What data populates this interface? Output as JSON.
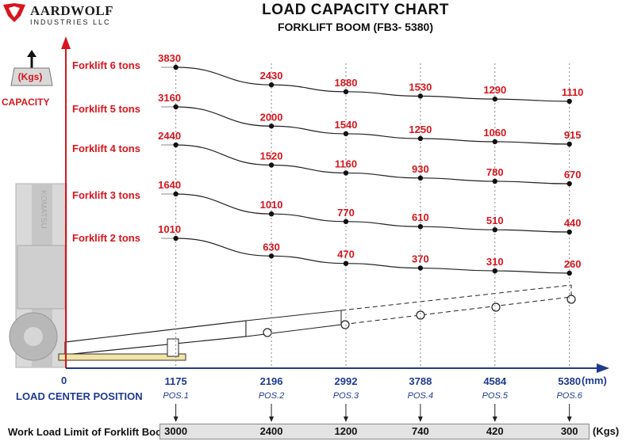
{
  "brand": {
    "name": "AARDWOLF",
    "subtitle": "INDUSTRIES LLC",
    "accent_color": "#d8151c",
    "axis_color": "#1f3a8f"
  },
  "header": {
    "title": "LOAD CAPACITY CHART",
    "subtitle": "FORKLIFT BOOM (FB3- 5380)"
  },
  "y_axis": {
    "unit": "(Kgs)",
    "label": "CAPACITY"
  },
  "x_axis": {
    "origin": "0",
    "label": "LOAD CENTER POSITION",
    "unit": "(mm)"
  },
  "work_load": {
    "label": "Work Load Limit of Forklift Boom",
    "unit": "(Kgs)",
    "values": [
      "3000",
      "2400",
      "1200",
      "740",
      "420",
      "300"
    ]
  },
  "chart_data": {
    "type": "line",
    "title": "LOAD CAPACITY CHART",
    "subtitle": "FORKLIFT BOOM (FB3- 5380)",
    "xlabel": "LOAD CENTER POSITION (mm)",
    "ylabel": "CAPACITY (Kgs)",
    "x": [
      1175,
      2196,
      2992,
      3788,
      4584,
      5380
    ],
    "x_tick_labels": [
      "1175",
      "2196",
      "2992",
      "3788",
      "4584",
      "5380"
    ],
    "position_labels": [
      "POS.1",
      "POS.2",
      "POS.3",
      "POS.4",
      "POS.5",
      "POS.6"
    ],
    "series": [
      {
        "name": "Forklift 6 tons",
        "values": [
          3830,
          2430,
          1880,
          1530,
          1290,
          1110
        ]
      },
      {
        "name": "Forklift 5 tons",
        "values": [
          3160,
          2000,
          1540,
          1250,
          1060,
          915
        ]
      },
      {
        "name": "Forklift 4 tons",
        "values": [
          2440,
          1520,
          1160,
          930,
          780,
          670
        ]
      },
      {
        "name": "Forklift 3 tons",
        "values": [
          1640,
          1010,
          770,
          610,
          510,
          440
        ]
      },
      {
        "name": "Forklift 2 tons",
        "values": [
          1010,
          630,
          470,
          370,
          310,
          260
        ]
      }
    ],
    "grid": "vertical dashed lines at each position",
    "legend": "left, inline series labels"
  }
}
